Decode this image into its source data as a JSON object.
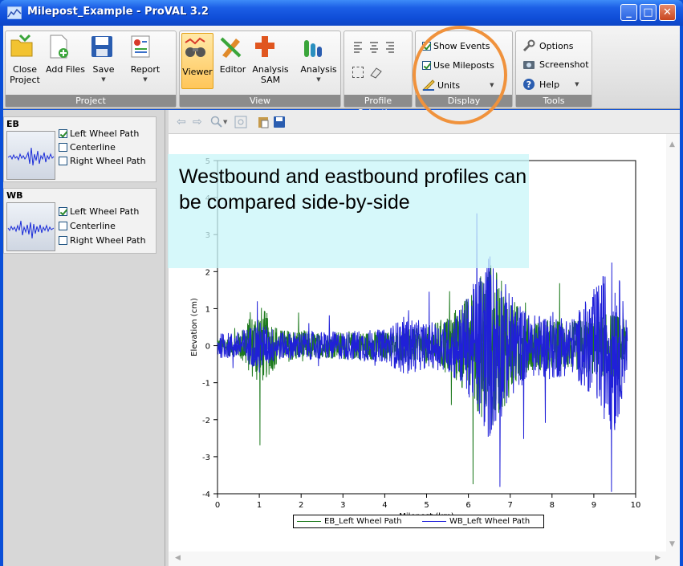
{
  "window": {
    "title": "Milepost_Example - ProVAL 3.2",
    "controls": {
      "minimize": "_",
      "maximize": "□",
      "close": "✕"
    }
  },
  "ribbon": {
    "project": {
      "label": "Project",
      "buttons": [
        {
          "label": "Close\nProject",
          "icon": "folder-icon"
        },
        {
          "label": "Add Files",
          "icon": "add-file-icon"
        },
        {
          "label": "Save",
          "icon": "save-icon"
        },
        {
          "label": "Report",
          "icon": "report-icon"
        }
      ]
    },
    "view": {
      "label": "View",
      "buttons": [
        {
          "label": "Viewer",
          "icon": "viewer-icon",
          "selected": true
        },
        {
          "label": "Editor",
          "icon": "editor-icon"
        },
        {
          "label": "Analysis\nSAM",
          "icon": "sam-icon"
        },
        {
          "label": "Analysis",
          "icon": "analysis-icon"
        }
      ]
    },
    "profile_selection": {
      "label": "Profile Selection"
    },
    "display": {
      "label": "Display",
      "show_events": "Show Events",
      "use_mileposts": "Use Mileposts",
      "units": "Units"
    },
    "tools": {
      "label": "Tools",
      "options": "Options",
      "screenshot": "Screenshot",
      "help": "Help"
    }
  },
  "profiles": [
    {
      "name": "EB",
      "paths": [
        {
          "label": "Left Wheel Path",
          "checked": true
        },
        {
          "label": "Centerline",
          "checked": false
        },
        {
          "label": "Right Wheel Path",
          "checked": false
        }
      ]
    },
    {
      "name": "WB",
      "paths": [
        {
          "label": "Left Wheel Path",
          "checked": true
        },
        {
          "label": "Centerline",
          "checked": false
        },
        {
          "label": "Right Wheel Path",
          "checked": false
        }
      ]
    }
  ],
  "callout": "Westbound and eastbound profiles can be compared side-by-side",
  "chart_data": {
    "type": "line",
    "xlabel": "Milepost (km)",
    "ylabel": "Elevation (cm)",
    "xlim": [
      0,
      10
    ],
    "ylim": [
      -4,
      5
    ],
    "xticks": [
      0,
      1,
      2,
      3,
      4,
      5,
      6,
      7,
      8,
      9,
      10
    ],
    "yticks": [
      -4,
      -3,
      -2,
      -1,
      0,
      1,
      2,
      3,
      4,
      5
    ],
    "legend_position": "bottom-center",
    "series": [
      {
        "name": "EB_Left Wheel Path",
        "color": "#1e7a1e",
        "envelope": [
          [
            0,
            0.4
          ],
          [
            0.5,
            0.6
          ],
          [
            1,
            2.1
          ],
          [
            1.5,
            0.8
          ],
          [
            2,
            0.8
          ],
          [
            2.5,
            0.6
          ],
          [
            3,
            0.7
          ],
          [
            3.5,
            0.7
          ],
          [
            4,
            0.7
          ],
          [
            4.5,
            0.8
          ],
          [
            5,
            0.9
          ],
          [
            5.5,
            1.5
          ],
          [
            6,
            2.5
          ],
          [
            6.5,
            4.3
          ],
          [
            7,
            2.5
          ],
          [
            7.5,
            1.2
          ],
          [
            8,
            1.3
          ],
          [
            8.5,
            1.2
          ],
          [
            9,
            1.5
          ],
          [
            9.5,
            1.6
          ],
          [
            9.8,
            1.2
          ]
        ]
      },
      {
        "name": "WB_Left Wheel Path",
        "color": "#2020d8",
        "envelope": [
          [
            0,
            0.6
          ],
          [
            0.5,
            0.7
          ],
          [
            1,
            1.2
          ],
          [
            1.5,
            0.7
          ],
          [
            2,
            0.7
          ],
          [
            2.5,
            0.7
          ],
          [
            3,
            0.7
          ],
          [
            3.5,
            0.8
          ],
          [
            4,
            0.8
          ],
          [
            4.5,
            1.5
          ],
          [
            5,
            1.1
          ],
          [
            5.5,
            1.3
          ],
          [
            6,
            2.5
          ],
          [
            6.5,
            4.8
          ],
          [
            7,
            2.6
          ],
          [
            7.5,
            1.5
          ],
          [
            8,
            1.7
          ],
          [
            8.5,
            1.4
          ],
          [
            9,
            2.8
          ],
          [
            9.5,
            4.5
          ],
          [
            9.8,
            1.3
          ]
        ]
      }
    ]
  }
}
